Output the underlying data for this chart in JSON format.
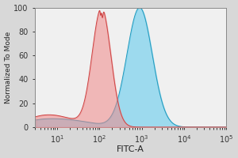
{
  "title": "",
  "xlabel": "FITC-A",
  "ylabel": "Normalized To Mode",
  "xlim": [
    3,
    100000.0
  ],
  "ylim": [
    0,
    100
  ],
  "yticks": [
    0,
    20,
    40,
    60,
    80,
    100
  ],
  "red_peak_log": 2.05,
  "red_sigma": 0.22,
  "red_color": "#F08888",
  "red_edge": "#CC4444",
  "blue_peak_log": 2.95,
  "blue_sigma": 0.3,
  "blue_color": "#66CCEE",
  "blue_edge": "#2299BB",
  "background_color": "#d8d8d8",
  "plot_bg": "#f0f0f0",
  "alpha_red": 0.55,
  "alpha_blue": 0.6,
  "xlabel_fontsize": 8,
  "ylabel_fontsize": 6.5,
  "tick_fontsize": 7
}
